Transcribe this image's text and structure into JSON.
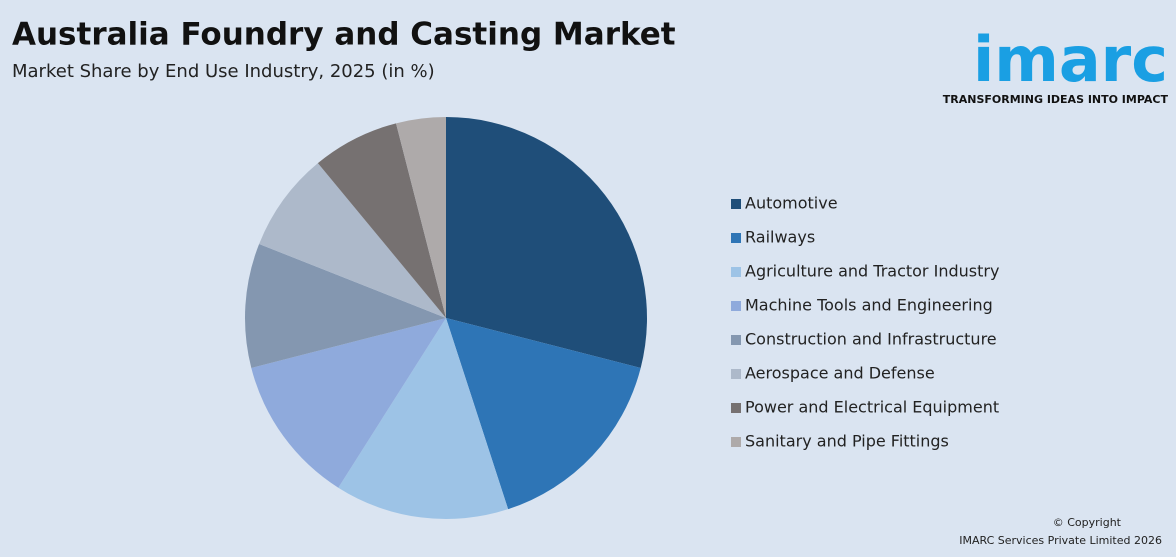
{
  "chart_data": {
    "type": "pie",
    "title": "Australia Foundry and Casting Market",
    "subtitle": "Market Share by End Use Industry, 2025 (in %)",
    "categories": [
      "Automotive",
      "Railways",
      "Agriculture and Tractor Industry",
      "Machine Tools and Engineering",
      "Construction and Infrastructure",
      "Aerospace and Defense",
      "Power and Electrical Equipment",
      "Sanitary and Pipe Fittings"
    ],
    "values": [
      29,
      16,
      14,
      12,
      10,
      8,
      7,
      4
    ],
    "colors": [
      "#1f4e79",
      "#2e75b6",
      "#9dc3e6",
      "#8faadc",
      "#8497b0",
      "#adb9ca",
      "#767171",
      "#aeaaaa"
    ]
  },
  "logo": {
    "name": "imarc",
    "tagline": "TRANSFORMING IDEAS INTO IMPACT"
  },
  "footer": {
    "copyright": "© Copyright",
    "company": "IMARC Services Private Limited 2026"
  }
}
